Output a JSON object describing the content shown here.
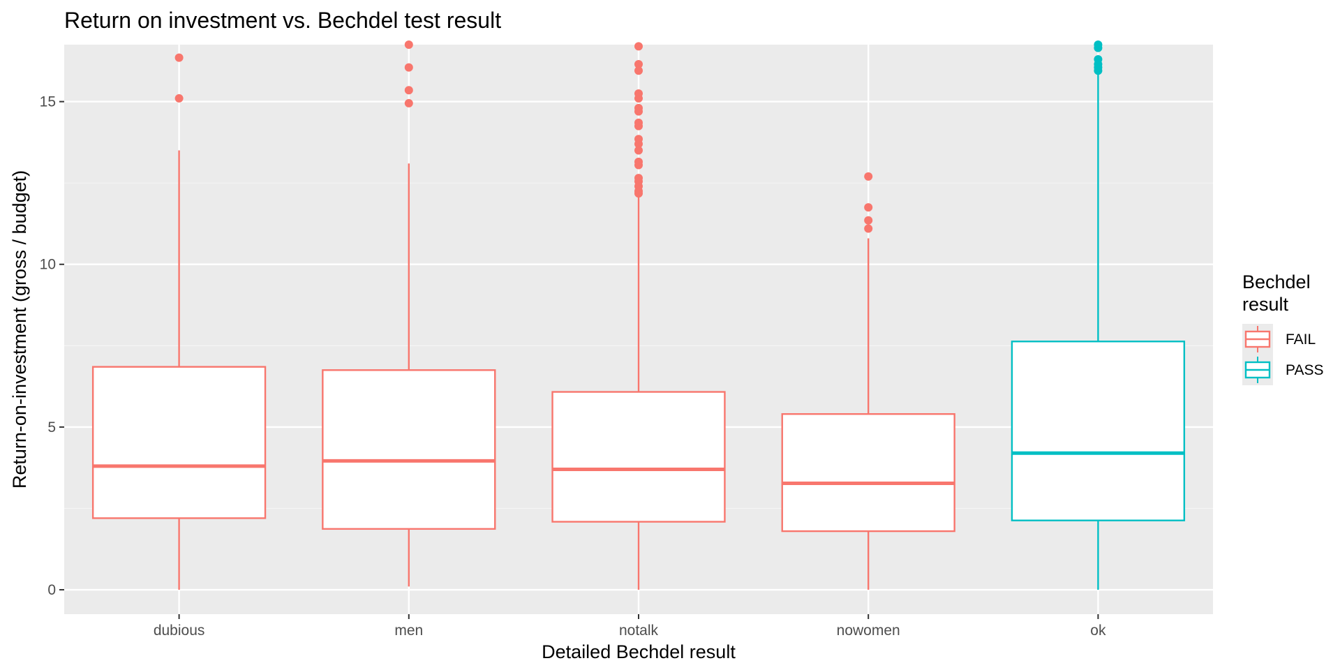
{
  "chart_data": {
    "type": "boxplot",
    "title": "Return on investment vs. Bechdel test result",
    "xlabel": "Detailed Bechdel result",
    "ylabel": "Return-on-investment (gross / budget)",
    "ylim": [
      -0.75,
      16.75
    ],
    "yticks": [
      0,
      5,
      10,
      15
    ],
    "grid": true,
    "legend": {
      "title_lines": [
        "Bechdel",
        "result"
      ],
      "placement": "right",
      "entries": [
        {
          "label": "FAIL",
          "color": "#F8766D"
        },
        {
          "label": "PASS",
          "color": "#00BFC4"
        }
      ]
    },
    "colors": {
      "panel": "#EBEBEB",
      "grid_major": "#FFFFFF",
      "grid_minor": "#F5F5F5",
      "box_fill": "#FFFFFF"
    },
    "categories": [
      "dubious",
      "men",
      "notalk",
      "nowomen",
      "ok"
    ],
    "boxes": [
      {
        "category": "dubious",
        "group": "FAIL",
        "min": 0.0,
        "q1": 2.2,
        "median": 3.8,
        "q3": 6.85,
        "max": 13.5,
        "outliers": [
          15.1,
          16.35
        ]
      },
      {
        "category": "men",
        "group": "FAIL",
        "min": 0.1,
        "q1": 1.87,
        "median": 3.96,
        "q3": 6.75,
        "max": 13.1,
        "outliers": [
          14.95,
          15.35,
          16.05,
          16.75
        ]
      },
      {
        "category": "notalk",
        "group": "FAIL",
        "min": 0.0,
        "q1": 2.09,
        "median": 3.7,
        "q3": 6.08,
        "max": 12.1,
        "outliers": [
          12.18,
          12.25,
          12.4,
          12.55,
          12.65,
          13.05,
          13.15,
          13.5,
          13.7,
          13.85,
          14.25,
          14.35,
          14.7,
          14.8,
          15.1,
          15.25,
          15.95,
          16.15,
          16.7
        ]
      },
      {
        "category": "nowomen",
        "group": "FAIL",
        "min": 0.0,
        "q1": 1.8,
        "median": 3.27,
        "q3": 5.4,
        "max": 10.8,
        "outliers": [
          11.1,
          11.35,
          11.75,
          12.7
        ]
      },
      {
        "category": "ok",
        "group": "PASS",
        "min": 0.0,
        "q1": 2.13,
        "median": 4.2,
        "q3": 7.63,
        "max": 15.85,
        "outliers": [
          15.95,
          16.05,
          16.15,
          16.3,
          16.65,
          16.75
        ]
      }
    ]
  }
}
